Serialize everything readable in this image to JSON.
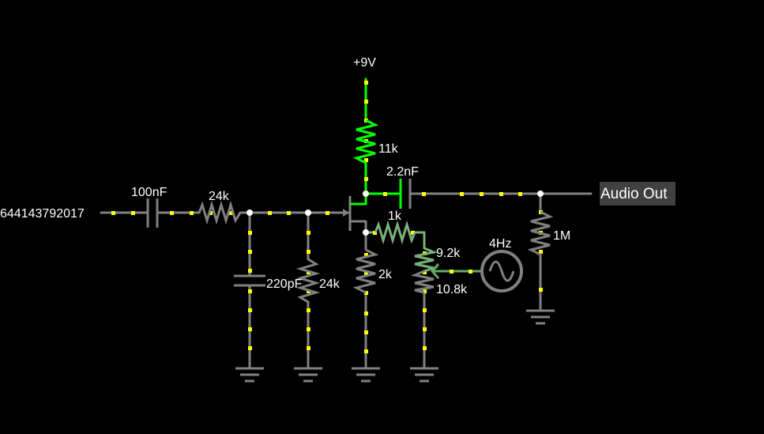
{
  "colors": {
    "background": "#000000",
    "wire": "#808080",
    "wire_hot": "#00ff00",
    "wire_mid": "#66aa66",
    "current_dots": "#ffff00",
    "node": "#ffffff",
    "text": "#ffffff",
    "output_box": "#404040"
  },
  "circuit": {
    "supply_label": "+9V",
    "input_label": "644143792017",
    "output_label": "Audio Out",
    "components": {
      "c_in": "100nF",
      "r_series": "24k",
      "c_shunt": "220pF",
      "r_bias": "24k",
      "r_drain": "11k",
      "c_out": "2.2nF",
      "r_source_link": "1k",
      "r_source": "2k",
      "pot_upper": "9.2k",
      "pot_lower": "10.8k",
      "lfo_freq": "4Hz",
      "r_load": "1M"
    }
  }
}
